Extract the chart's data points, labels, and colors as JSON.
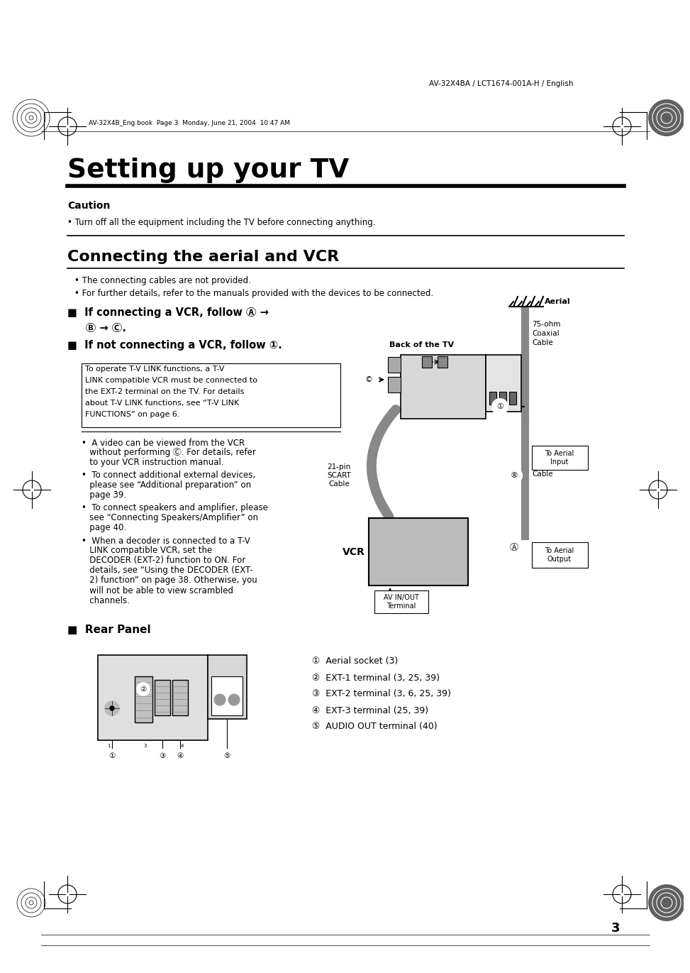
{
  "page_header_right": "AV-32X4BA / LCT1674-001A-H / English",
  "page_header_left": "AV-32X4B_Eng.book  Page 3  Monday, June 21, 2004  10:47 AM",
  "main_title": "Setting up your TV",
  "caution_title": "Caution",
  "caution_text": "• Turn off all the equipment including the TV before connecting anything.",
  "section_title": "Connecting the aerial and VCR",
  "bullet1": "• The connecting cables are not provided.",
  "bullet2": "• For further details, refer to the manuals provided with the devices to be connected.",
  "vcr_instr1": "■  If connecting a VCR, follow Ⓐ →",
  "vcr_instr1b": "     Ⓑ → Ⓒ.",
  "vcr_instr2": "■  If not connecting a VCR, follow ①.",
  "tlink_line1": "To operate T-V LINK functions, a T-V",
  "tlink_line2": "LINK compatible VCR must be connected to",
  "tlink_line3": "the EXT-2 terminal on the TV. For details",
  "tlink_line4": "about T-V LINK functions, see “T-V LINK",
  "tlink_line5": "FUNCTIONS” on page 6.",
  "ba_line1": "•  A video can be viewed from the VCR",
  "ba_line2": "   without performing Ⓒ. For details, refer",
  "ba_line3": "   to your VCR instruction manual.",
  "bb_line1": "•  To connect additional external devices,",
  "bb_line2": "   please see “Additional preparation” on",
  "bb_line3": "   page 39.",
  "bc_line1": "•  To connect speakers and amplifier, please",
  "bc_line2": "   see “Connecting Speakers/Amplifier” on",
  "bc_line3": "   page 40.",
  "bd_line1": "•  When a decoder is connected to a T-V",
  "bd_line2": "   LINK compatible VCR, set the",
  "bd_line3": "   DECODER (EXT-2) function to ON. For",
  "bd_line4": "   details, see “Using the DECODER (EXT-",
  "bd_line5": "   2) function” on page 38. Otherwise, you",
  "bd_line6": "   will not be able to view scrambled",
  "bd_line7": "   channels.",
  "rear_panel_title": "■  Rear Panel",
  "legend1": "①  Aerial socket (3)",
  "legend2": "②  EXT-1 terminal (3, 25, 39)",
  "legend3": "③  EXT-2 terminal (3, 6, 25, 39)",
  "legend4": "④  EXT-3 terminal (25, 39)",
  "legend5": "⑤  AUDIO OUT terminal (40)",
  "page_number": "3",
  "bg_color": "#ffffff",
  "diag_aerial_label": "Aerial",
  "diag_back_tv": "Back of the TV",
  "diag_75ohm1": "75-ohm\nCoaxial\nCable",
  "diag_75ohm2": "75-ohm\nCoaxial\nCable",
  "diag_21pin": "21-pin\nSCART\nCable",
  "diag_vcr": "VCR",
  "diag_aerial_input": "To Aerial\nInput",
  "diag_aerial_output": "To Aerial\nOutput",
  "diag_avinout": "AV IN/OUT\nTerminal"
}
